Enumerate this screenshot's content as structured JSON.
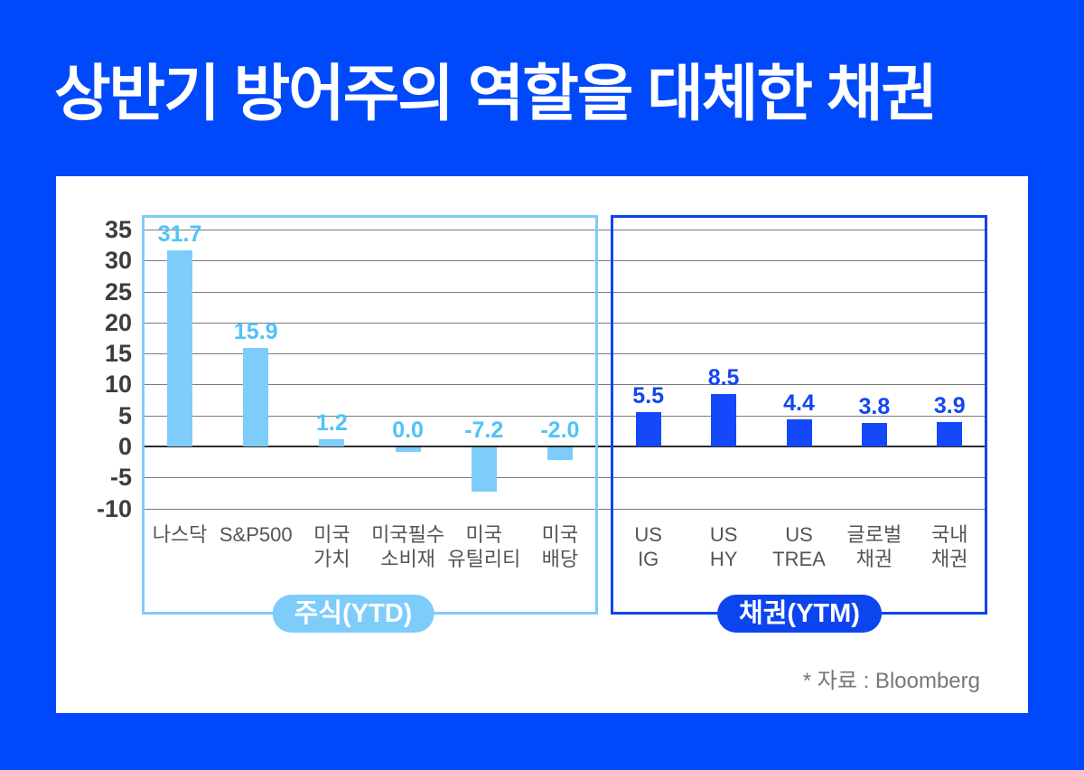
{
  "title": "상반기 방어주의 역할을 대체한 채권",
  "source_note": "* 자료 : Bloomberg",
  "colors": {
    "background": "#0049FA",
    "card": "#FFFFFF",
    "gridline": "#7B7B7B",
    "zero_line": "#2B2B2B",
    "axis_tick": "#3D3D3D",
    "category_label": "#555555"
  },
  "chart_data": {
    "type": "bar",
    "grid": true,
    "ylim": [
      -10,
      37.5
    ],
    "yticks": [
      35,
      30,
      25,
      20,
      15,
      10,
      5,
      0,
      -5,
      -10
    ],
    "panels": [
      {
        "name": "stocks_ytd",
        "badge_label": "주식(YTD)",
        "bar_color": "#7DCCFA",
        "box_border_color": "#7DCCFA",
        "badge_color": "#7DCCFA",
        "value_label_color": "#4FC3F7",
        "categories": [
          "나스닥",
          "S&P500",
          "미국\n가치",
          "미국필수\n소비재",
          "미국\n유틸리티",
          "미국\n배당"
        ],
        "values": [
          31.7,
          15.9,
          1.2,
          0.0,
          -7.2,
          -2.0
        ]
      },
      {
        "name": "bonds_ytm",
        "badge_label": "채권(YTM)",
        "bar_color": "#1548FA",
        "box_border_color": "#0C45EE",
        "badge_color": "#0C45EE",
        "value_label_color": "#1446F0",
        "categories": [
          "US\nIG",
          "US\nHY",
          "US\nTREA",
          "글로벌\n채권",
          "국내\n채권"
        ],
        "values": [
          5.5,
          8.5,
          4.4,
          3.8,
          3.9
        ]
      }
    ]
  }
}
